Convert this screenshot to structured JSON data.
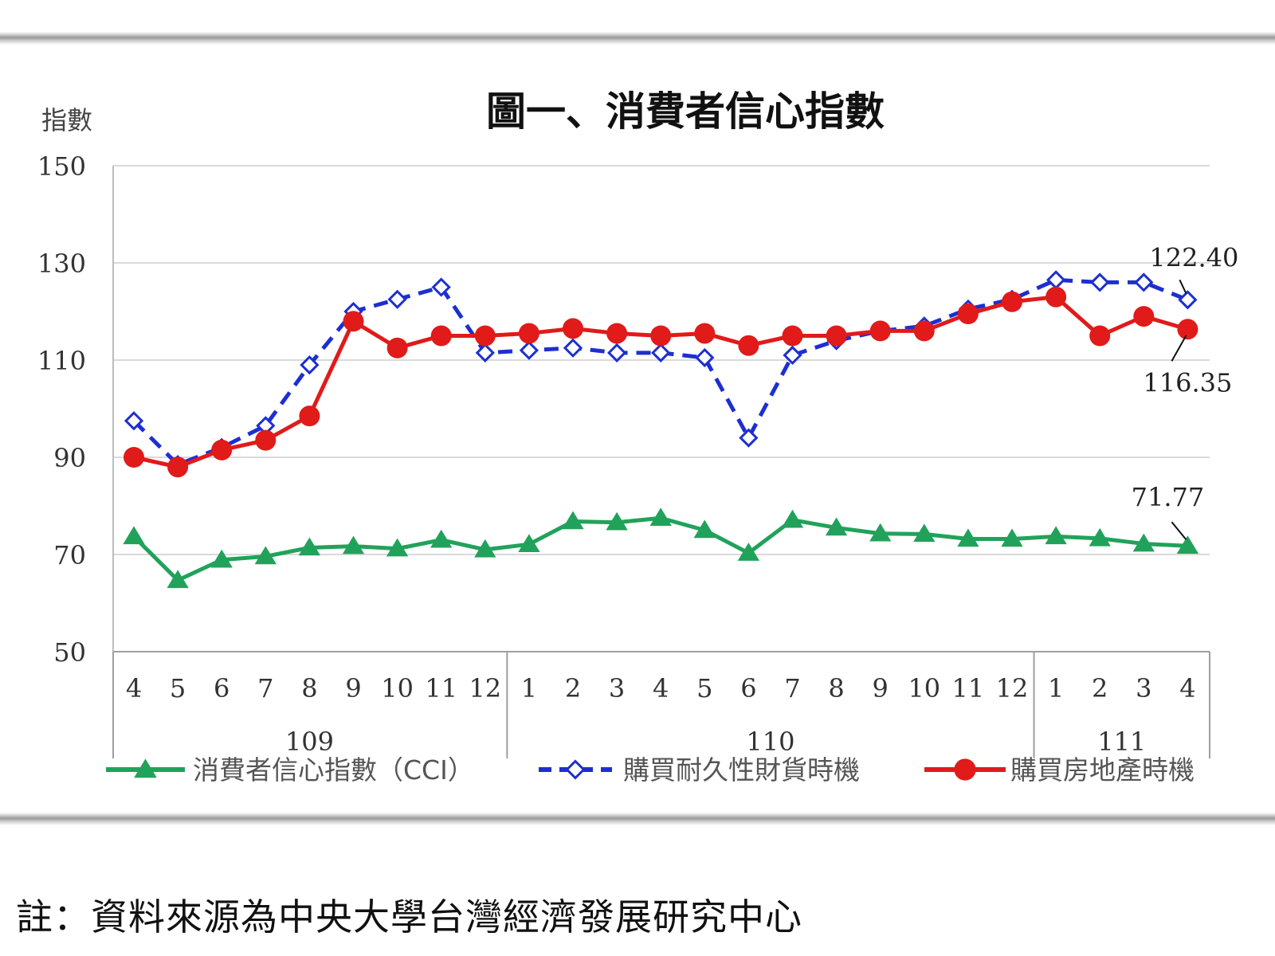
{
  "chart_data": {
    "type": "line",
    "title": "圖一、消費者信心指數",
    "ylabel": "指數",
    "ylim": [
      50,
      150
    ],
    "yticks": [
      150,
      130,
      110,
      90,
      70,
      50
    ],
    "grid": true,
    "categories": [
      "4",
      "5",
      "6",
      "7",
      "8",
      "9",
      "10",
      "11",
      "12",
      "1",
      "2",
      "3",
      "4",
      "5",
      "6",
      "7",
      "8",
      "9",
      "10",
      "11",
      "12",
      "1",
      "2",
      "3",
      "4"
    ],
    "year_groups": [
      {
        "label": "109",
        "start": 0,
        "end": 8
      },
      {
        "label": "110",
        "start": 9,
        "end": 20
      },
      {
        "label": "111",
        "start": 21,
        "end": 24
      }
    ],
    "series": [
      {
        "name": "消費者信心指數（CCI）",
        "color": "#21a25a",
        "style": "solid",
        "marker": "triangle",
        "values": [
          73.7,
          64.7,
          68.9,
          69.6,
          71.4,
          71.7,
          71.2,
          73.0,
          71.0,
          72.1,
          76.8,
          76.6,
          77.5,
          75.0,
          70.3,
          77.1,
          75.5,
          74.3,
          74.2,
          73.2,
          73.2,
          73.7,
          73.3,
          72.2,
          71.77
        ]
      },
      {
        "name": "購買耐久性財貨時機",
        "color": "#1d2fd1",
        "style": "dashed",
        "marker": "diamond",
        "values": [
          97.5,
          88.5,
          92.0,
          96.5,
          109.0,
          120.0,
          122.5,
          125.0,
          111.5,
          112.0,
          112.5,
          111.5,
          111.5,
          110.5,
          94.0,
          111.0,
          114.0,
          116.0,
          117.0,
          120.5,
          122.5,
          126.5,
          126.0,
          126.0,
          122.4
        ]
      },
      {
        "name": "購買房地產時機",
        "color": "#e11a1a",
        "style": "solid",
        "marker": "circle",
        "values": [
          90.0,
          88.0,
          91.5,
          93.5,
          98.5,
          118.0,
          112.5,
          115.0,
          115.0,
          115.5,
          116.5,
          115.5,
          115.0,
          115.5,
          113.0,
          115.0,
          115.0,
          116.0,
          116.0,
          119.5,
          122.0,
          123.0,
          115.0,
          119.0,
          116.35
        ]
      }
    ],
    "annotations": [
      {
        "text": "122.40",
        "series": 1,
        "index": 24
      },
      {
        "text": "116.35",
        "series": 2,
        "index": 24
      },
      {
        "text": "71.77",
        "series": 0,
        "index": 24
      }
    ]
  },
  "note": "註：資料來源為中央大學台灣經濟發展研究中心"
}
